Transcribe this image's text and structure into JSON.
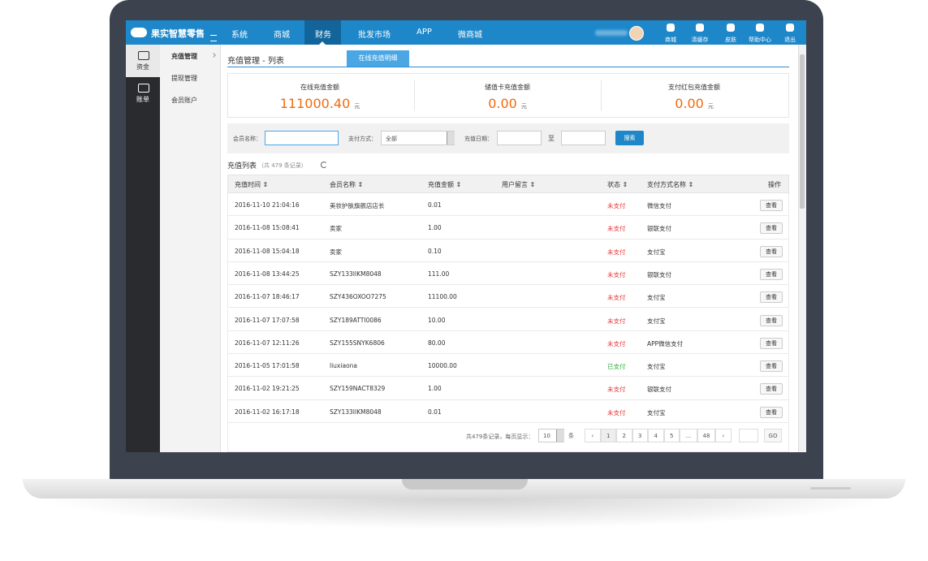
{
  "brand": "果实智慧零售",
  "nav": [
    "系统",
    "商城",
    "财务",
    "批发市场",
    "APP",
    "微商城"
  ],
  "top_icons": [
    "商城",
    "清缓存",
    "皮肤",
    "帮助中心",
    "退出"
  ],
  "sidebar": [
    "资金",
    "账单"
  ],
  "submenu": [
    "充值管理",
    "提现管理",
    "会员账户"
  ],
  "breadcrumb": "充值管理 - 列表",
  "tab": "在线充值明细",
  "summary": [
    {
      "label": "在线充值金额",
      "amount": "111000.40",
      "unit": "元"
    },
    {
      "label": "储值卡充值金额",
      "amount": "0.00",
      "unit": "元"
    },
    {
      "label": "支付红包充值金额",
      "amount": "0.00",
      "unit": "元"
    }
  ],
  "filters": {
    "member_label": "会员名称：",
    "pay_label": "支付方式：",
    "pay_value": "全部",
    "date_label": "充值日期：",
    "to": "至",
    "search": "搜索"
  },
  "list_title": "充值列表",
  "list_count": "（共 479 条记录）",
  "table": {
    "columns": [
      "充值时间 ⇕",
      "会员名称 ⇕",
      "充值金额 ⇕",
      "用户留言 ⇕",
      "状态 ⇕",
      "支付方式名称 ⇕",
      "操作"
    ],
    "rows": [
      {
        "time": "2016-11-10 21:04:16",
        "member": "美妆护肤旗舰店店长",
        "amount": "0.01",
        "status": "未支付",
        "status_color": "#e4393c",
        "method": "微信支付",
        "action": "查看"
      },
      {
        "time": "2016-11-08 15:08:41",
        "member": "卖家",
        "amount": "1.00",
        "status": "未支付",
        "status_color": "#e4393c",
        "method": "银联支付",
        "action": "查看"
      },
      {
        "time": "2016-11-08 15:04:18",
        "member": "卖家",
        "amount": "0.10",
        "status": "未支付",
        "status_color": "#e4393c",
        "method": "支付宝",
        "action": "查看"
      },
      {
        "time": "2016-11-08 13:44:25",
        "member": "SZY133IIKM8048",
        "amount": "111.00",
        "status": "未支付",
        "status_color": "#e4393c",
        "method": "银联支付",
        "action": "查看"
      },
      {
        "time": "2016-11-07 18:46:17",
        "member": "SZY436OXOO7275",
        "amount": "11100.00",
        "status": "未支付",
        "status_color": "#e4393c",
        "method": "支付宝",
        "action": "查看"
      },
      {
        "time": "2016-11-07 17:07:58",
        "member": "SZY189ATTI0086",
        "amount": "10.00",
        "status": "未支付",
        "status_color": "#e4393c",
        "method": "支付宝",
        "action": "查看"
      },
      {
        "time": "2016-11-07 12:11:26",
        "member": "SZY155SNYK6806",
        "amount": "80.00",
        "status": "未支付",
        "status_color": "#e4393c",
        "method": "APP微信支付",
        "action": "查看"
      },
      {
        "time": "2016-11-05 17:01:58",
        "member": "liuxiaona",
        "amount": "10000.00",
        "status": "已支付",
        "status_color": "#2fae3a",
        "method": "支付宝",
        "action": "查看"
      },
      {
        "time": "2016-11-02 19:21:25",
        "member": "SZY159NACT8329",
        "amount": "1.00",
        "status": "未支付",
        "status_color": "#e4393c",
        "method": "银联支付",
        "action": "查看"
      },
      {
        "time": "2016-11-02 16:17:18",
        "member": "SZY133IIKM8048",
        "amount": "0.01",
        "status": "未支付",
        "status_color": "#e4393c",
        "method": "支付宝",
        "action": "查看"
      }
    ]
  },
  "pagination": {
    "summary": "共479条记录，每页显示：",
    "per_page": "10",
    "unit": "条",
    "pages": [
      "‹",
      "1",
      "2",
      "3",
      "4",
      "5",
      "...",
      "48",
      "›"
    ],
    "go": "GO"
  }
}
